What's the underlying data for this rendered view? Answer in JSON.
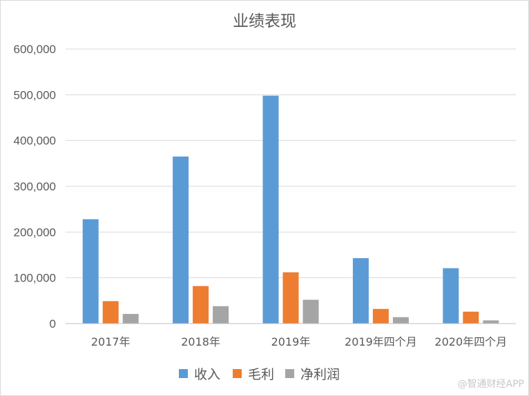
{
  "chart_data": {
    "type": "bar",
    "title": "业绩表现",
    "categories": [
      "2017年",
      "2018年",
      "2019年",
      "2019年四个月",
      "2020年四个月"
    ],
    "series": [
      {
        "name": "收入",
        "color": "#5B9BD5",
        "values": [
          228000,
          365000,
          498000,
          143000,
          121000
        ]
      },
      {
        "name": "毛利",
        "color": "#ED7D31",
        "values": [
          49000,
          82000,
          112000,
          32000,
          26000
        ]
      },
      {
        "name": "净利润",
        "color": "#A5A5A5",
        "values": [
          21000,
          38000,
          52000,
          14000,
          7000
        ]
      }
    ],
    "ylim": [
      0,
      600000
    ],
    "yticks": [
      0,
      100000,
      200000,
      300000,
      400000,
      500000,
      600000
    ],
    "ytick_labels": [
      "0",
      "100,000",
      "200,000",
      "300,000",
      "400,000",
      "500,000",
      "600,000"
    ],
    "xlabel": "",
    "ylabel": "",
    "grid": true,
    "legend_position": "bottom"
  },
  "watermark": "@智通财经APP"
}
